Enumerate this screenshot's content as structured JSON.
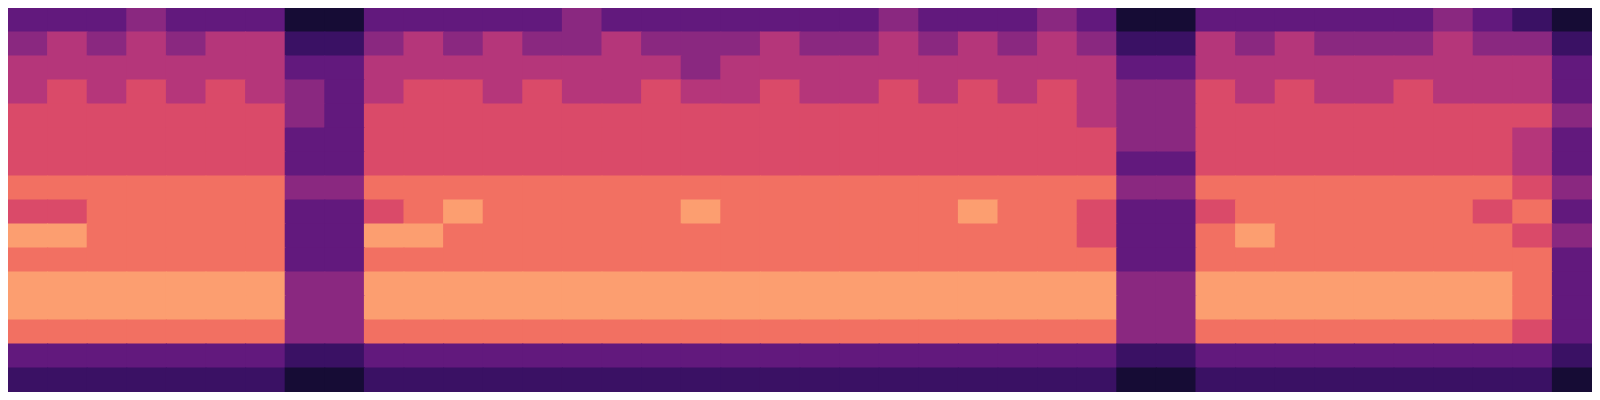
{
  "chart_data": {
    "type": "heatmap",
    "tick_labels": false,
    "zlim": [
      0,
      10
    ],
    "cells": [
      [
        3,
        3,
        3,
        4,
        3,
        3,
        3,
        1,
        1,
        3,
        3,
        3,
        3,
        3,
        4,
        3,
        3,
        3,
        3,
        3,
        3,
        3,
        4,
        3,
        3,
        3,
        4,
        3,
        1,
        1,
        3,
        3,
        3,
        3,
        3,
        3,
        4,
        3,
        2,
        1
      ],
      [
        4,
        5,
        4,
        5,
        4,
        5,
        5,
        2,
        2,
        4,
        5,
        4,
        5,
        4,
        4,
        5,
        4,
        4,
        4,
        5,
        4,
        4,
        5,
        4,
        5,
        4,
        5,
        4,
        2,
        2,
        5,
        4,
        5,
        4,
        4,
        4,
        5,
        4,
        4,
        2
      ],
      [
        5,
        5,
        5,
        5,
        5,
        5,
        5,
        3,
        3,
        5,
        5,
        5,
        5,
        5,
        5,
        5,
        5,
        4,
        5,
        5,
        5,
        5,
        5,
        5,
        5,
        5,
        5,
        5,
        3,
        3,
        5,
        5,
        5,
        5,
        5,
        5,
        5,
        5,
        5,
        3
      ],
      [
        5,
        6,
        5,
        6,
        5,
        6,
        5,
        4,
        3,
        5,
        6,
        6,
        5,
        6,
        5,
        5,
        6,
        5,
        5,
        6,
        5,
        5,
        6,
        5,
        6,
        5,
        6,
        5,
        4,
        4,
        6,
        5,
        6,
        5,
        5,
        6,
        5,
        5,
        5,
        3
      ],
      [
        6,
        6,
        6,
        6,
        6,
        6,
        6,
        4,
        3,
        6,
        6,
        6,
        6,
        6,
        6,
        6,
        6,
        6,
        6,
        6,
        6,
        6,
        6,
        6,
        6,
        6,
        6,
        5,
        4,
        4,
        6,
        6,
        6,
        6,
        6,
        6,
        6,
        6,
        6,
        4
      ],
      [
        6,
        6,
        6,
        6,
        6,
        6,
        6,
        3,
        3,
        6,
        6,
        6,
        6,
        6,
        6,
        6,
        6,
        6,
        6,
        6,
        6,
        6,
        6,
        6,
        6,
        6,
        6,
        6,
        4,
        4,
        6,
        6,
        6,
        6,
        6,
        6,
        6,
        6,
        5,
        3
      ],
      [
        6,
        6,
        6,
        6,
        6,
        6,
        6,
        3,
        3,
        6,
        6,
        6,
        6,
        6,
        6,
        6,
        6,
        6,
        6,
        6,
        6,
        6,
        6,
        6,
        6,
        6,
        6,
        6,
        3,
        3,
        6,
        6,
        6,
        6,
        6,
        6,
        6,
        6,
        5,
        3
      ],
      [
        7,
        7,
        7,
        7,
        7,
        7,
        7,
        4,
        4,
        7,
        7,
        7,
        7,
        7,
        7,
        7,
        7,
        7,
        7,
        7,
        7,
        7,
        7,
        7,
        7,
        7,
        7,
        7,
        4,
        4,
        7,
        7,
        7,
        7,
        7,
        7,
        7,
        7,
        6,
        4
      ],
      [
        6,
        6,
        7,
        7,
        7,
        7,
        7,
        3,
        3,
        6,
        7,
        8,
        7,
        7,
        7,
        7,
        7,
        8,
        7,
        7,
        7,
        7,
        7,
        7,
        8,
        7,
        7,
        6,
        3,
        3,
        6,
        7,
        7,
        7,
        7,
        7,
        7,
        6,
        7,
        3
      ],
      [
        8,
        8,
        7,
        7,
        7,
        7,
        7,
        3,
        3,
        8,
        8,
        7,
        7,
        7,
        7,
        7,
        7,
        7,
        7,
        7,
        7,
        7,
        7,
        7,
        7,
        7,
        7,
        6,
        3,
        3,
        7,
        8,
        7,
        7,
        7,
        7,
        7,
        7,
        6,
        4
      ],
      [
        7,
        7,
        7,
        7,
        7,
        7,
        7,
        3,
        3,
        7,
        7,
        7,
        7,
        7,
        7,
        7,
        7,
        7,
        7,
        7,
        7,
        7,
        7,
        7,
        7,
        7,
        7,
        7,
        3,
        3,
        7,
        7,
        7,
        7,
        7,
        7,
        7,
        7,
        7,
        3
      ],
      [
        8,
        8,
        8,
        8,
        8,
        8,
        8,
        4,
        4,
        8,
        8,
        8,
        8,
        8,
        8,
        8,
        8,
        8,
        8,
        8,
        8,
        8,
        8,
        8,
        8,
        8,
        8,
        8,
        4,
        4,
        8,
        8,
        8,
        8,
        8,
        8,
        8,
        8,
        7,
        3
      ],
      [
        8,
        8,
        8,
        8,
        8,
        8,
        8,
        4,
        4,
        8,
        8,
        8,
        8,
        8,
        8,
        8,
        8,
        8,
        8,
        8,
        8,
        8,
        8,
        8,
        8,
        8,
        8,
        8,
        4,
        4,
        8,
        8,
        8,
        8,
        8,
        8,
        8,
        8,
        7,
        3
      ],
      [
        7,
        7,
        7,
        7,
        7,
        7,
        7,
        4,
        4,
        7,
        7,
        7,
        7,
        7,
        7,
        7,
        7,
        7,
        7,
        7,
        7,
        7,
        7,
        7,
        7,
        7,
        7,
        7,
        4,
        4,
        7,
        7,
        7,
        7,
        7,
        7,
        7,
        7,
        6,
        3
      ],
      [
        3,
        3,
        3,
        3,
        3,
        3,
        3,
        2,
        2,
        3,
        3,
        3,
        3,
        3,
        3,
        3,
        3,
        3,
        3,
        3,
        3,
        3,
        3,
        3,
        3,
        3,
        3,
        3,
        2,
        2,
        3,
        3,
        3,
        3,
        3,
        3,
        3,
        3,
        3,
        2
      ],
      [
        2,
        2,
        2,
        2,
        2,
        2,
        2,
        1,
        1,
        2,
        2,
        2,
        2,
        2,
        2,
        2,
        2,
        2,
        2,
        2,
        2,
        2,
        2,
        2,
        2,
        2,
        2,
        2,
        1,
        1,
        2,
        2,
        2,
        2,
        2,
        2,
        2,
        2,
        2,
        1
      ]
    ]
  }
}
